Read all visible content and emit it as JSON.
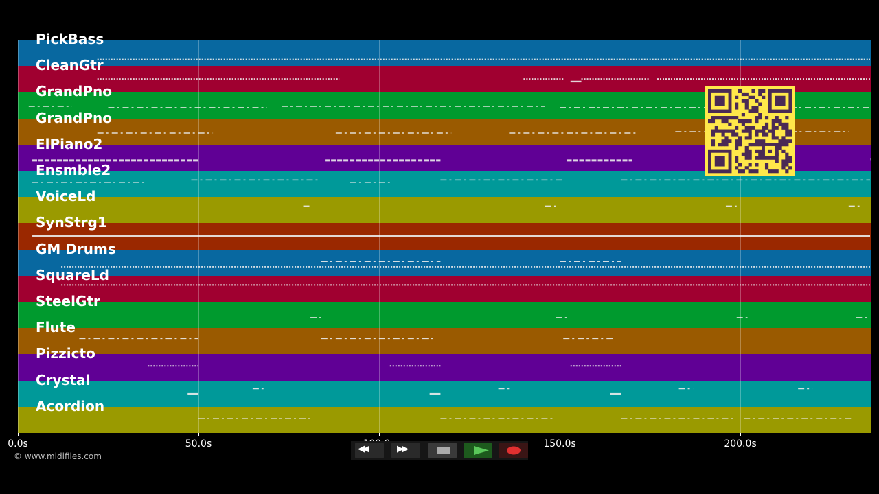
{
  "tracks": [
    {
      "name": "PickBass",
      "color": "#0868a0",
      "notes": [
        [
          22,
          237,
          0.75,
          "dot"
        ]
      ]
    },
    {
      "name": "CleanGtr",
      "color": "#a00030",
      "notes": [
        [
          22,
          89,
          0.5,
          "dot"
        ],
        [
          140,
          151,
          0.5,
          "dot"
        ],
        [
          153,
          156,
          0.6,
          "line"
        ],
        [
          156,
          175,
          0.5,
          "dot"
        ],
        [
          177,
          236,
          0.5,
          "dot"
        ]
      ]
    },
    {
      "name": "GrandPno",
      "color": "#009a2e",
      "notes": [
        [
          3,
          15,
          0.55,
          "dash"
        ],
        [
          25,
          69,
          0.6,
          "dash"
        ],
        [
          73,
          146,
          0.55,
          "dash"
        ],
        [
          150,
          239,
          0.6,
          "dash"
        ]
      ]
    },
    {
      "name": "GrandPno",
      "color": "#9a5a00",
      "notes": [
        [
          22,
          54,
          0.55,
          "dash"
        ],
        [
          88,
          120,
          0.55,
          "dash"
        ],
        [
          136,
          172,
          0.55,
          "dash"
        ],
        [
          182,
          230,
          0.5,
          "dash"
        ]
      ]
    },
    {
      "name": "ElPiano2",
      "color": "#600095",
      "notes": [
        [
          4,
          50,
          0.6,
          "thick"
        ],
        [
          85,
          117,
          0.6,
          "thick"
        ],
        [
          152,
          170,
          0.6,
          "thick"
        ],
        [
          236,
          238,
          0.55,
          "thick"
        ]
      ]
    },
    {
      "name": "Ensmble2",
      "color": "#009999",
      "notes": [
        [
          4,
          35,
          0.45,
          "dash"
        ],
        [
          48,
          84,
          0.35,
          "dash"
        ],
        [
          92,
          103,
          0.45,
          "dash"
        ],
        [
          117,
          151,
          0.35,
          "dash"
        ],
        [
          167,
          238,
          0.35,
          "dash"
        ]
      ]
    },
    {
      "name": "VoiceLd",
      "color": "#9a9a00",
      "notes": [
        [
          79,
          81,
          0.35,
          "dash"
        ],
        [
          146,
          149,
          0.35,
          "dash"
        ],
        [
          196,
          199,
          0.35,
          "dash"
        ],
        [
          230,
          233,
          0.35,
          "dash"
        ]
      ]
    },
    {
      "name": "SynStrg1",
      "color": "#9a2800",
      "notes": [
        [
          4,
          240,
          0.5,
          "line"
        ]
      ]
    },
    {
      "name": "GM Drums",
      "color": "#0868a0",
      "notes": [
        [
          12,
          238,
          0.65,
          "dot"
        ],
        [
          84,
          117,
          0.45,
          "dash"
        ],
        [
          150,
          167,
          0.45,
          "dash"
        ]
      ]
    },
    {
      "name": "SquareLd",
      "color": "#a00030",
      "notes": [
        [
          12,
          238,
          0.35,
          "dot"
        ]
      ]
    },
    {
      "name": "SteelGtr",
      "color": "#009a2e",
      "notes": [
        [
          81,
          84,
          0.6,
          "dash"
        ],
        [
          149,
          152,
          0.6,
          "dash"
        ],
        [
          199,
          202,
          0.6,
          "dash"
        ],
        [
          232,
          236,
          0.6,
          "dash"
        ]
      ]
    },
    {
      "name": "Flute",
      "color": "#9a5a00",
      "notes": [
        [
          17,
          50,
          0.4,
          "dash"
        ],
        [
          84,
          115,
          0.4,
          "dash"
        ],
        [
          151,
          165,
          0.4,
          "dash"
        ]
      ]
    },
    {
      "name": "Pizzicto",
      "color": "#600095",
      "notes": [
        [
          36,
          50,
          0.45,
          "dot"
        ],
        [
          103,
          117,
          0.45,
          "dot"
        ],
        [
          153,
          167,
          0.45,
          "dot"
        ]
      ]
    },
    {
      "name": "Crystal",
      "color": "#009999",
      "notes": [
        [
          47,
          50,
          0.5,
          "line"
        ],
        [
          65,
          68,
          0.3,
          "dash"
        ],
        [
          114,
          117,
          0.5,
          "line"
        ],
        [
          133,
          136,
          0.3,
          "dash"
        ],
        [
          164,
          167,
          0.5,
          "line"
        ],
        [
          183,
          187,
          0.3,
          "dash"
        ],
        [
          216,
          220,
          0.3,
          "dash"
        ]
      ]
    },
    {
      "name": "Acordion",
      "color": "#9a9a00",
      "notes": [
        [
          50,
          81,
          0.45,
          "dash"
        ],
        [
          117,
          148,
          0.45,
          "dash"
        ],
        [
          167,
          198,
          0.45,
          "dash"
        ],
        [
          201,
          231,
          0.45,
          "dash"
        ]
      ]
    }
  ],
  "timeline": {
    "max_seconds": 236,
    "labels": [
      {
        "t": 0,
        "text": "0.0s"
      },
      {
        "t": 50,
        "text": "50.0s"
      },
      {
        "t": 100,
        "text": "100.0s"
      },
      {
        "t": 150,
        "text": "150.0s"
      },
      {
        "t": 200,
        "text": "200.0s"
      }
    ]
  },
  "copyright": "© www.midifiles.com",
  "transport": {
    "rewind": {
      "icon": "rewind-icon",
      "glyph": "◀◀"
    },
    "forward": {
      "icon": "fast-forward-icon",
      "glyph": "▶▶"
    },
    "stop": {
      "icon": "stop-icon",
      "color": "#aaaaaa"
    },
    "play": {
      "icon": "play-icon",
      "color": "#5ac85a"
    },
    "record": {
      "icon": "record-icon",
      "color": "#e03030"
    }
  },
  "qr_code": {
    "icon": "qr-code-icon",
    "color": "#ffe84a"
  }
}
